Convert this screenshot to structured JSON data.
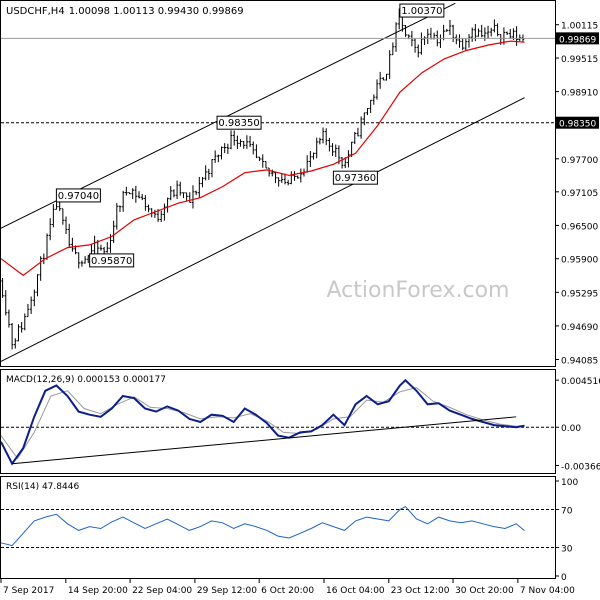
{
  "header": {
    "symbol_line": "USDCHF,H4",
    "ohlc": "1.00098 1.00113 0.99430 0.99869"
  },
  "watermark": "ActionForex.com",
  "colors": {
    "candles": "#000000",
    "ma": "#e00000",
    "macd_line": "#0a1e8c",
    "macd_signal": "#999999",
    "rsi_line": "#1e64c8",
    "axis": "#000000",
    "watermark": "#c8c8c8",
    "price_tag_bg": "#000000",
    "price_tag_fg": "#ffffff"
  },
  "chart_data": [
    {
      "type": "candlestick",
      "panel": "price",
      "title": "USDCHF,H4",
      "ylim": [
        0.9404,
        1.0047
      ],
      "y_ticks": [
        "1.00115",
        "0.99515",
        "0.98910",
        "0.97700",
        "0.97105",
        "0.96500",
        "0.95900",
        "0.95295",
        "0.94690",
        "0.94085"
      ],
      "current_price": "0.99869",
      "level_price": "0.98350",
      "level_value": 0.9835,
      "annotations": [
        {
          "label": "1.00370",
          "x": 0.72,
          "y": 1.0037
        },
        {
          "label": "0.98350",
          "x": 0.39,
          "y": 0.9835
        },
        {
          "label": "0.97040",
          "x": 0.1,
          "y": 0.9704
        },
        {
          "label": "0.95870",
          "x": 0.16,
          "y": 0.9587
        },
        {
          "label": "0.97360",
          "x": 0.6,
          "y": 0.9736
        }
      ],
      "path": [
        [
          0.0,
          0.955
        ],
        [
          0.02,
          0.944
        ],
        [
          0.04,
          0.9475
        ],
        [
          0.06,
          0.954
        ],
        [
          0.08,
          0.961
        ],
        [
          0.1,
          0.969
        ],
        [
          0.115,
          0.964
        ],
        [
          0.13,
          0.9595
        ],
        [
          0.15,
          0.959
        ],
        [
          0.17,
          0.961
        ],
        [
          0.19,
          0.96
        ],
        [
          0.21,
          0.968
        ],
        [
          0.23,
          0.972
        ],
        [
          0.26,
          0.969
        ],
        [
          0.28,
          0.966
        ],
        [
          0.3,
          0.97
        ],
        [
          0.32,
          0.9715
        ],
        [
          0.34,
          0.969
        ],
        [
          0.36,
          0.973
        ],
        [
          0.38,
          0.976
        ],
        [
          0.4,
          0.979
        ],
        [
          0.42,
          0.981
        ],
        [
          0.44,
          0.98
        ],
        [
          0.46,
          0.977
        ],
        [
          0.48,
          0.9745
        ],
        [
          0.5,
          0.974
        ],
        [
          0.52,
          0.9725
        ],
        [
          0.54,
          0.975
        ],
        [
          0.56,
          0.977
        ],
        [
          0.58,
          0.981
        ],
        [
          0.6,
          0.979
        ],
        [
          0.62,
          0.976
        ],
        [
          0.64,
          0.981
        ],
        [
          0.66,
          0.986
        ],
        [
          0.68,
          0.99
        ],
        [
          0.7,
          0.994
        ],
        [
          0.71,
          0.999
        ],
        [
          0.72,
          1.003
        ],
        [
          0.73,
          0.999
        ],
        [
          0.75,
          0.9965
        ],
        [
          0.77,
          1.0
        ],
        [
          0.79,
          0.9985
        ],
        [
          0.81,
          1.0005
        ],
        [
          0.83,
          0.9975
        ],
        [
          0.85,
          1.0005
        ],
        [
          0.87,
          0.999
        ],
        [
          0.89,
          1.0
        ],
        [
          0.91,
          0.9995
        ],
        [
          0.93,
          0.999
        ],
        [
          0.945,
          0.9987
        ]
      ],
      "moving_average": [
        [
          0.0,
          0.959
        ],
        [
          0.04,
          0.956
        ],
        [
          0.08,
          0.959
        ],
        [
          0.12,
          0.961
        ],
        [
          0.16,
          0.9615
        ],
        [
          0.2,
          0.963
        ],
        [
          0.24,
          0.966
        ],
        [
          0.28,
          0.9675
        ],
        [
          0.32,
          0.969
        ],
        [
          0.36,
          0.97
        ],
        [
          0.4,
          0.972
        ],
        [
          0.44,
          0.9745
        ],
        [
          0.48,
          0.975
        ],
        [
          0.52,
          0.974
        ],
        [
          0.56,
          0.9748
        ],
        [
          0.6,
          0.976
        ],
        [
          0.64,
          0.978
        ],
        [
          0.68,
          0.983
        ],
        [
          0.72,
          0.989
        ],
        [
          0.76,
          0.9925
        ],
        [
          0.8,
          0.995
        ],
        [
          0.84,
          0.9965
        ],
        [
          0.88,
          0.9975
        ],
        [
          0.92,
          0.9982
        ],
        [
          0.945,
          0.998
        ]
      ],
      "channel": {
        "upper": [
          [
            0.0,
            0.9645
          ],
          [
            0.82,
            1.005
          ]
        ],
        "lower": [
          [
            0.0,
            0.9405
          ],
          [
            0.945,
            0.988
          ]
        ]
      },
      "watermark": "ActionForex.com"
    },
    {
      "type": "line",
      "panel": "macd",
      "label": "MACD(12,26,9) 0.000153 0.000177",
      "ylim": [
        -0.0042,
        0.0053
      ],
      "y_ticks": [
        "0.004516",
        "0.00",
        "-0.003668"
      ],
      "y_tick_values": [
        0.004516,
        0.0,
        -0.003668
      ],
      "macd": [
        [
          0.0,
          -0.0014
        ],
        [
          0.02,
          -0.0035
        ],
        [
          0.04,
          -0.002
        ],
        [
          0.06,
          0.001
        ],
        [
          0.08,
          0.0035
        ],
        [
          0.1,
          0.004
        ],
        [
          0.12,
          0.003
        ],
        [
          0.14,
          0.0015
        ],
        [
          0.16,
          0.0012
        ],
        [
          0.18,
          0.001
        ],
        [
          0.2,
          0.0018
        ],
        [
          0.22,
          0.003
        ],
        [
          0.24,
          0.0028
        ],
        [
          0.26,
          0.0018
        ],
        [
          0.28,
          0.0015
        ],
        [
          0.3,
          0.002
        ],
        [
          0.32,
          0.0016
        ],
        [
          0.34,
          0.0008
        ],
        [
          0.36,
          0.0005
        ],
        [
          0.38,
          0.0012
        ],
        [
          0.4,
          0.0011
        ],
        [
          0.42,
          0.0005
        ],
        [
          0.44,
          0.0018
        ],
        [
          0.46,
          0.0012
        ],
        [
          0.48,
          0.0004
        ],
        [
          0.5,
          -0.0008
        ],
        [
          0.52,
          -0.001
        ],
        [
          0.54,
          -0.0005
        ],
        [
          0.56,
          -0.0004
        ],
        [
          0.58,
          0.0002
        ],
        [
          0.6,
          0.0012
        ],
        [
          0.62,
          0.0002
        ],
        [
          0.64,
          0.0022
        ],
        [
          0.66,
          0.003
        ],
        [
          0.68,
          0.0022
        ],
        [
          0.7,
          0.0025
        ],
        [
          0.72,
          0.004
        ],
        [
          0.73,
          0.0045
        ],
        [
          0.75,
          0.0035
        ],
        [
          0.77,
          0.0022
        ],
        [
          0.79,
          0.0023
        ],
        [
          0.81,
          0.0016
        ],
        [
          0.83,
          0.0012
        ],
        [
          0.85,
          0.0008
        ],
        [
          0.87,
          0.0005
        ],
        [
          0.89,
          0.0002
        ],
        [
          0.91,
          0.0001
        ],
        [
          0.93,
          0.0
        ],
        [
          0.945,
          0.00015
        ]
      ],
      "signal": [
        [
          0.0,
          -0.0008
        ],
        [
          0.03,
          -0.003
        ],
        [
          0.06,
          -0.0005
        ],
        [
          0.09,
          0.003
        ],
        [
          0.12,
          0.0035
        ],
        [
          0.15,
          0.0018
        ],
        [
          0.18,
          0.0013
        ],
        [
          0.21,
          0.0022
        ],
        [
          0.24,
          0.0029
        ],
        [
          0.27,
          0.0019
        ],
        [
          0.3,
          0.0018
        ],
        [
          0.33,
          0.0014
        ],
        [
          0.36,
          0.0008
        ],
        [
          0.39,
          0.001
        ],
        [
          0.42,
          0.0009
        ],
        [
          0.45,
          0.0013
        ],
        [
          0.48,
          0.0006
        ],
        [
          0.51,
          -0.0005
        ],
        [
          0.54,
          -0.0006
        ],
        [
          0.57,
          -0.0002
        ],
        [
          0.6,
          0.0008
        ],
        [
          0.63,
          0.001
        ],
        [
          0.66,
          0.0026
        ],
        [
          0.69,
          0.0024
        ],
        [
          0.72,
          0.0034
        ],
        [
          0.75,
          0.0038
        ],
        [
          0.78,
          0.0025
        ],
        [
          0.81,
          0.0019
        ],
        [
          0.84,
          0.0012
        ],
        [
          0.87,
          0.0007
        ],
        [
          0.9,
          0.0003
        ],
        [
          0.93,
          0.0001
        ],
        [
          0.945,
          0.00018
        ]
      ],
      "trendline": [
        [
          0.02,
          -0.0035
        ],
        [
          0.93,
          0.001
        ]
      ]
    },
    {
      "type": "line",
      "panel": "rsi",
      "label": "RSI(14) 47.8446",
      "ylim": [
        0,
        100
      ],
      "y_ticks": [
        "100",
        "70",
        "30",
        "0"
      ],
      "y_tick_values": [
        100,
        70,
        30,
        0
      ],
      "levels": [
        70,
        30
      ],
      "rsi": [
        [
          0.0,
          35
        ],
        [
          0.02,
          32
        ],
        [
          0.04,
          45
        ],
        [
          0.06,
          58
        ],
        [
          0.08,
          62
        ],
        [
          0.1,
          65
        ],
        [
          0.12,
          55
        ],
        [
          0.14,
          48
        ],
        [
          0.16,
          52
        ],
        [
          0.18,
          50
        ],
        [
          0.2,
          57
        ],
        [
          0.22,
          62
        ],
        [
          0.24,
          56
        ],
        [
          0.26,
          50
        ],
        [
          0.28,
          55
        ],
        [
          0.3,
          60
        ],
        [
          0.32,
          54
        ],
        [
          0.34,
          48
        ],
        [
          0.36,
          52
        ],
        [
          0.38,
          58
        ],
        [
          0.4,
          56
        ],
        [
          0.42,
          50
        ],
        [
          0.44,
          55
        ],
        [
          0.46,
          52
        ],
        [
          0.48,
          48
        ],
        [
          0.5,
          42
        ],
        [
          0.52,
          40
        ],
        [
          0.54,
          45
        ],
        [
          0.56,
          50
        ],
        [
          0.58,
          56
        ],
        [
          0.6,
          52
        ],
        [
          0.62,
          48
        ],
        [
          0.64,
          58
        ],
        [
          0.66,
          62
        ],
        [
          0.68,
          60
        ],
        [
          0.7,
          58
        ],
        [
          0.72,
          70
        ],
        [
          0.73,
          73
        ],
        [
          0.75,
          60
        ],
        [
          0.77,
          55
        ],
        [
          0.79,
          62
        ],
        [
          0.81,
          58
        ],
        [
          0.83,
          56
        ],
        [
          0.85,
          58
        ],
        [
          0.87,
          55
        ],
        [
          0.89,
          52
        ],
        [
          0.91,
          50
        ],
        [
          0.93,
          55
        ],
        [
          0.945,
          47.8
        ]
      ]
    }
  ],
  "x_axis": {
    "labels": [
      "7 Sep 2017",
      "14 Sep 20:00",
      "22 Sep 04:00",
      "29 Sep 12:00",
      "6 Oct 20:00",
      "16 Oct 04:00",
      "23 Oct 12:00",
      "30 Oct 20:00",
      "7 Nov 04:00"
    ],
    "positions": [
      0.0,
      0.117,
      0.233,
      0.35,
      0.466,
      0.583,
      0.7,
      0.816,
      0.933
    ]
  }
}
